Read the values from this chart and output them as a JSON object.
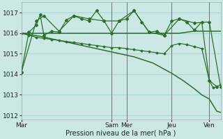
{
  "background_color": "#cce8e4",
  "grid_color": "#99cccc",
  "line_color": "#2d6e2d",
  "ylim": [
    1011.8,
    1017.5
  ],
  "yticks": [
    1012,
    1013,
    1014,
    1015,
    1016,
    1017
  ],
  "xlabel": "Pression niveau de la mer( hPa )",
  "day_labels": [
    "Mar",
    "Sam",
    "Mer",
    "Jeu",
    "Ven"
  ],
  "day_x": [
    0,
    24,
    28,
    40,
    50
  ],
  "vline_x": [
    24,
    28,
    40,
    50
  ],
  "total_points": 54,
  "line1_x": [
    0,
    2,
    4,
    5,
    6,
    8,
    10,
    12,
    14,
    16,
    18,
    20,
    22,
    24,
    26,
    28,
    30,
    32,
    34,
    36,
    38,
    40,
    42,
    44,
    46,
    48,
    50,
    52
  ],
  "line1_y": [
    1014.1,
    1016.05,
    1016.4,
    1016.9,
    1015.9,
    1016.1,
    1016.05,
    1016.65,
    1016.85,
    1016.7,
    1016.6,
    1017.1,
    1016.6,
    1016.0,
    1016.6,
    1016.7,
    1017.1,
    1016.55,
    1016.05,
    1016.1,
    1015.9,
    1016.6,
    1016.7,
    1016.55,
    1016.15,
    1016.55,
    1013.7,
    1013.4
  ],
  "line2_x": [
    0,
    2,
    4,
    6,
    8,
    10,
    12,
    14,
    16,
    18,
    20,
    22,
    24,
    26,
    28,
    30,
    32,
    34,
    36,
    38,
    40,
    42,
    44,
    46,
    48,
    50,
    52,
    53
  ],
  "line2_y": [
    1016.0,
    1016.0,
    1016.0,
    1016.0,
    1016.0,
    1016.0,
    1016.0,
    1016.0,
    1016.0,
    1016.0,
    1016.0,
    1016.0,
    1016.0,
    1016.0,
    1016.0,
    1016.0,
    1016.0,
    1016.0,
    1016.0,
    1016.0,
    1016.0,
    1016.0,
    1016.05,
    1016.1,
    1016.1,
    1016.1,
    1016.1,
    1016.1
  ],
  "line3_x": [
    0,
    4,
    6,
    10,
    14,
    18,
    22,
    26,
    30,
    34,
    38,
    42,
    46,
    50,
    53
  ],
  "line3_y": [
    1014.1,
    1016.6,
    1016.85,
    1016.1,
    1016.85,
    1016.7,
    1016.6,
    1016.6,
    1017.1,
    1016.05,
    1015.9,
    1016.7,
    1016.5,
    1016.55,
    1013.4
  ],
  "line4_x": [
    0,
    2,
    4,
    6,
    8,
    10,
    12,
    14,
    16,
    18,
    20,
    22,
    24,
    26,
    28,
    30,
    32,
    34,
    36,
    38,
    40,
    42,
    44,
    46,
    48,
    50,
    51,
    52,
    53
  ],
  "line4_y": [
    1016.0,
    1015.9,
    1015.8,
    1015.75,
    1015.7,
    1015.65,
    1015.6,
    1015.55,
    1015.5,
    1015.45,
    1015.4,
    1015.35,
    1015.3,
    1015.3,
    1015.25,
    1015.2,
    1015.15,
    1015.1,
    1015.05,
    1015.0,
    1015.4,
    1015.5,
    1015.45,
    1015.35,
    1015.25,
    1013.7,
    1013.35,
    1013.4,
    1013.5
  ],
  "line5_x": [
    0,
    5,
    10,
    15,
    20,
    25,
    30,
    35,
    40,
    43,
    46,
    48,
    50,
    51,
    52,
    53
  ],
  "line5_y": [
    1016.0,
    1015.85,
    1015.65,
    1015.45,
    1015.25,
    1015.05,
    1014.85,
    1014.55,
    1014.05,
    1013.7,
    1013.3,
    1013.0,
    1012.8,
    1012.5,
    1012.2,
    1012.15
  ]
}
